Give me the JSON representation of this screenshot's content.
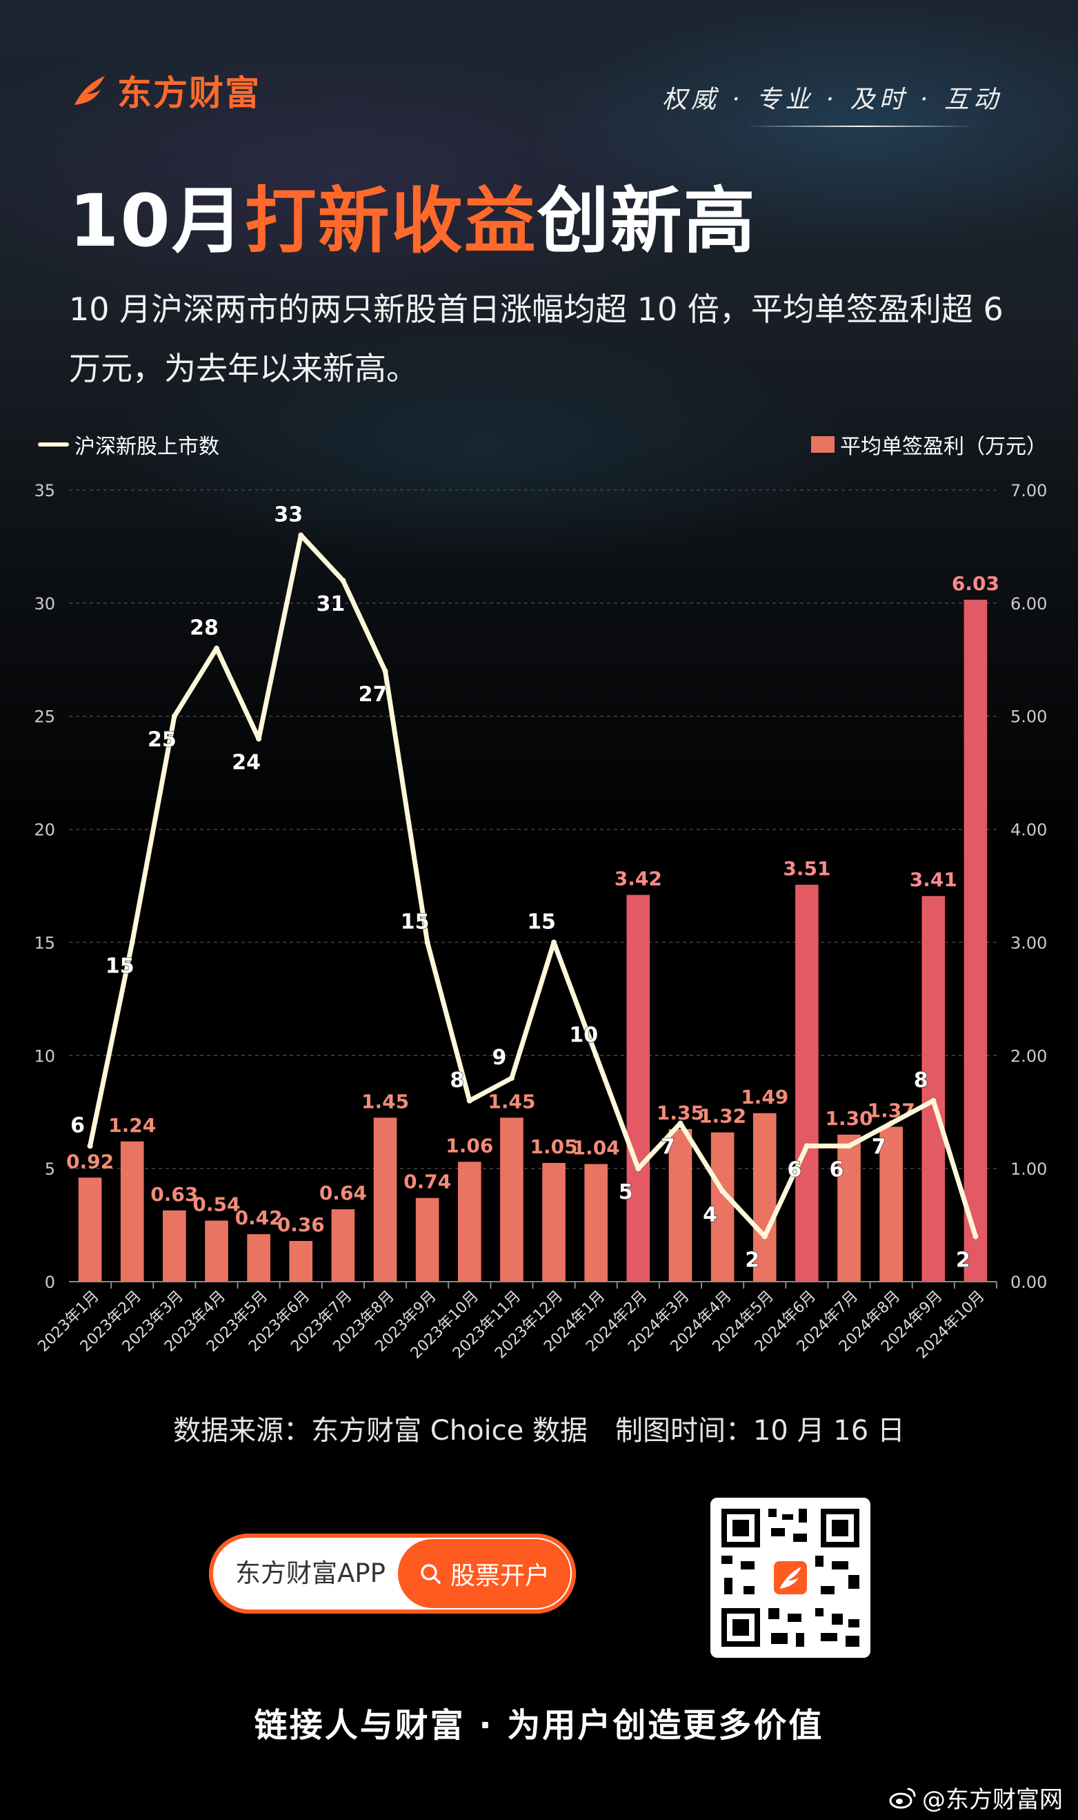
{
  "brand": {
    "name": "东方财富",
    "slogan": "权威 · 专业 · 及时 · 互动"
  },
  "headline": {
    "part1": "10月",
    "highlight": "打新收益",
    "part2": "创新高"
  },
  "intro": "10 月沪深两市的两只新股首日涨幅均超 10 倍，平均单签盈利超 6 万元，为去年以来新高。",
  "colors": {
    "accent": "#ff6a2c",
    "bar": "#ea7462",
    "bar_highlight": "#e35a64",
    "line": "#fff7d9"
  },
  "chart_data": {
    "type": "bar+line",
    "categories": [
      "2023年1月",
      "2023年2月",
      "2023年3月",
      "2023年4月",
      "2023年5月",
      "2023年6月",
      "2023年7月",
      "2023年8月",
      "2023年9月",
      "2023年10月",
      "2023年11月",
      "2023年12月",
      "2024年1月",
      "2024年2月",
      "2024年3月",
      "2024年4月",
      "2024年5月",
      "2024年6月",
      "2024年7月",
      "2024年8月",
      "2024年9月",
      "2024年10月"
    ],
    "series": [
      {
        "name": "沪深新股上市数",
        "type": "line",
        "axis": "left",
        "values": [
          6,
          15,
          25,
          28,
          24,
          33,
          31,
          27,
          15,
          8,
          9,
          15,
          10,
          5,
          7,
          4,
          2,
          6,
          6,
          7,
          8,
          2
        ],
        "labels": [
          "6",
          "15",
          "25",
          "28",
          "24",
          "33",
          "31",
          "27",
          "15",
          "8",
          "9",
          "15",
          "10",
          "5",
          "7",
          "4",
          "2",
          "6",
          "6",
          "7",
          "8",
          "2"
        ]
      },
      {
        "name": "平均单签盈利（万元）",
        "type": "bar",
        "axis": "right",
        "values": [
          0.92,
          1.24,
          0.63,
          0.54,
          0.42,
          0.36,
          0.64,
          1.45,
          0.74,
          1.06,
          1.45,
          1.05,
          1.04,
          3.42,
          1.35,
          1.32,
          1.49,
          3.51,
          1.3,
          1.37,
          3.41,
          6.03
        ],
        "labels": [
          "0.92",
          "1.24",
          "0.63",
          "0.54",
          "0.42",
          "0.36",
          "0.64",
          "1.45",
          "0.74",
          "1.06",
          "1.45",
          "1.05",
          "1.04",
          "3.42",
          "1.35",
          "1.32",
          "1.49",
          "3.51",
          "1.30",
          "1.37",
          "3.41",
          "6.03"
        ]
      }
    ],
    "y_left": {
      "range": [
        0,
        35
      ],
      "ticks": [
        "0",
        "5",
        "10",
        "15",
        "20",
        "25",
        "30",
        "35"
      ]
    },
    "y_right": {
      "range": [
        0,
        7
      ],
      "ticks": [
        "0.00",
        "1.00",
        "2.00",
        "3.00",
        "4.00",
        "5.00",
        "6.00",
        "7.00"
      ]
    },
    "grid": true,
    "legend": [
      "top-left",
      "top-right"
    ]
  },
  "footer": {
    "source": "数据来源：东方财富 Choice 数据　制图时间：10 月 16 日",
    "app_name": "东方财富APP",
    "open_button": "股票开户",
    "tagline": "链接人与财富 · 为用户创造更多价值",
    "weibo": "@东方财富网"
  }
}
